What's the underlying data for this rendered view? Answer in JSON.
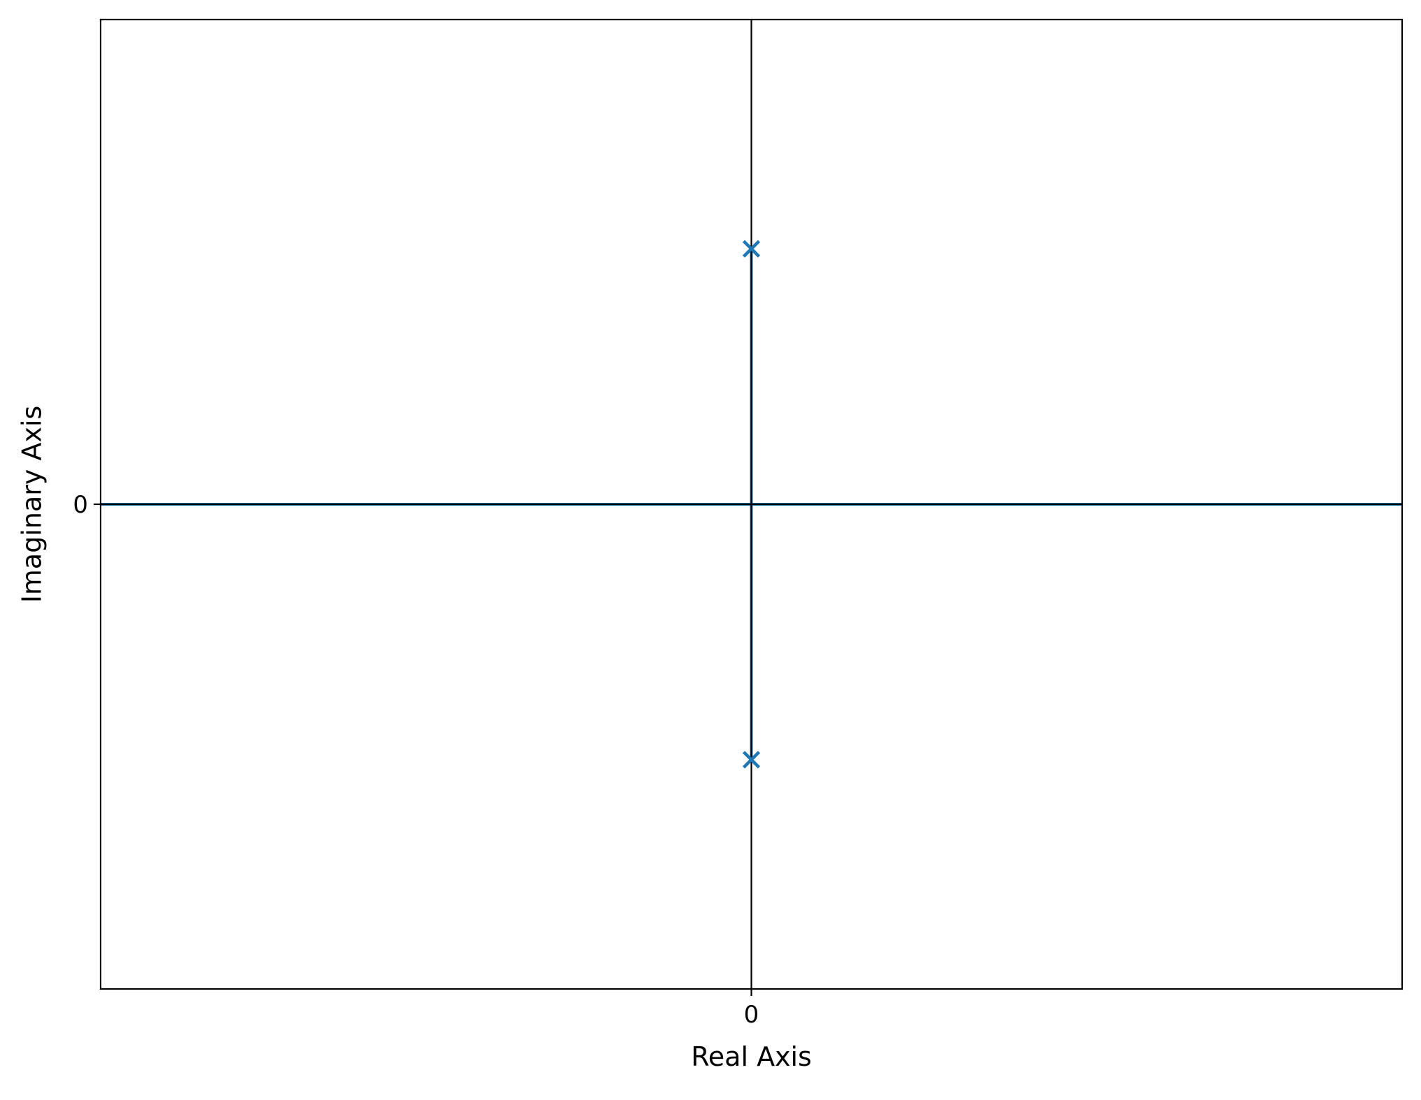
{
  "chart_data": {
    "type": "scatter",
    "title": "",
    "xlabel": "Real Axis",
    "ylabel": "Imaginary Axis",
    "xlim": [
      -1,
      1
    ],
    "ylim": [
      -1,
      1
    ],
    "xticks": [
      {
        "value": 0,
        "label": "0"
      }
    ],
    "yticks": [
      {
        "value": 0,
        "label": "0"
      }
    ],
    "grid": false,
    "crosshair_axes_at_origin": true,
    "series": [
      {
        "marker": "x",
        "color": "#1f77b4",
        "points": [
          {
            "x": 0,
            "y": 0.527
          },
          {
            "x": 0,
            "y": -0.527
          }
        ]
      }
    ],
    "locus_segments": [
      {
        "from": {
          "x": 0,
          "y": 0.527
        },
        "to": {
          "x": 0,
          "y": -0.527
        }
      },
      {
        "from": {
          "x": -1,
          "y": 0
        },
        "to": {
          "x": 1,
          "y": 0
        }
      }
    ],
    "colors": {
      "series": "#1f77b4",
      "axes": "#000000",
      "background": "#ffffff"
    }
  }
}
